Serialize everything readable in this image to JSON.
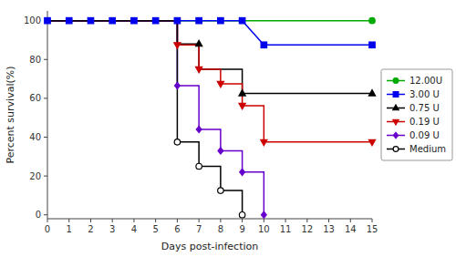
{
  "chart_data": {
    "type": "line",
    "xlabel": "Days post-infection",
    "ylabel": "Percent survival(%)",
    "xlim": [
      0,
      15
    ],
    "ylim": [
      -2,
      105
    ],
    "xticks": [
      0,
      1,
      2,
      3,
      4,
      5,
      6,
      7,
      8,
      9,
      10,
      11,
      12,
      13,
      14,
      15
    ],
    "yticks": [
      0,
      20,
      40,
      60,
      80,
      100
    ],
    "grid": false,
    "legend": "right",
    "series": [
      {
        "name": "12.00U",
        "color": "#00aa00",
        "marker": "circle",
        "x": [
          0,
          15
        ],
        "values": [
          100,
          100
        ],
        "marker_x": [
          15
        ],
        "marker_values": [
          100
        ]
      },
      {
        "name": "3.00 U",
        "color": "#0000ee",
        "marker": "square",
        "x": [
          0,
          9,
          9,
          10,
          10,
          15
        ],
        "values": [
          100,
          100,
          100,
          87.5,
          87.5,
          87.5
        ],
        "marker_x": [
          0,
          1,
          2,
          3,
          4,
          5,
          6,
          7,
          8,
          9,
          10,
          15
        ],
        "marker_values": [
          100,
          100,
          100,
          100,
          100,
          100,
          100,
          100,
          100,
          100,
          87.5,
          87.5
        ]
      },
      {
        "name": "0.75 U",
        "color": "#000000",
        "marker": "triangle-up",
        "x": [
          0,
          6,
          6,
          7,
          7,
          8,
          8,
          9,
          9,
          10,
          10,
          15
        ],
        "values": [
          100,
          100,
          88,
          88,
          75,
          75,
          75,
          75,
          62.5,
          62.5,
          62.5,
          62.5
        ],
        "marker_x": [
          7,
          9,
          15
        ],
        "marker_values": [
          88,
          62.5,
          62.5
        ]
      },
      {
        "name": "0.19 U",
        "color": "#cc0000",
        "marker": "triangle-down",
        "x": [
          0,
          6,
          6,
          7,
          7,
          8,
          8,
          9,
          9,
          10,
          10,
          15
        ],
        "values": [
          100,
          100,
          87.5,
          87.5,
          75,
          75,
          67.5,
          67.5,
          56.25,
          56.25,
          37.5,
          37.5
        ],
        "marker_x": [
          6,
          7,
          8,
          9,
          10,
          15
        ],
        "marker_values": [
          87.5,
          75,
          67.5,
          56.25,
          37.5,
          37.5
        ]
      },
      {
        "name": "0.09 U",
        "color": "#6600cc",
        "marker": "diamond",
        "x": [
          0,
          6,
          6,
          7,
          7,
          8,
          8,
          9,
          9,
          10,
          10
        ],
        "values": [
          100,
          100,
          66.5,
          66.5,
          44,
          44,
          33,
          33,
          22,
          22,
          0
        ],
        "marker_x": [
          6,
          7,
          8,
          9,
          10
        ],
        "marker_values": [
          66.5,
          44,
          33,
          22,
          0
        ]
      },
      {
        "name": "Medium",
        "color": "#000000",
        "marker": "circle-open",
        "x": [
          0,
          6,
          6,
          7,
          7,
          8,
          8,
          9,
          9
        ],
        "values": [
          100,
          100,
          37.5,
          37.5,
          25,
          25,
          12.5,
          12.5,
          0
        ],
        "marker_x": [
          6,
          7,
          8,
          9
        ],
        "marker_values": [
          37.5,
          25,
          12.5,
          0
        ]
      }
    ]
  }
}
